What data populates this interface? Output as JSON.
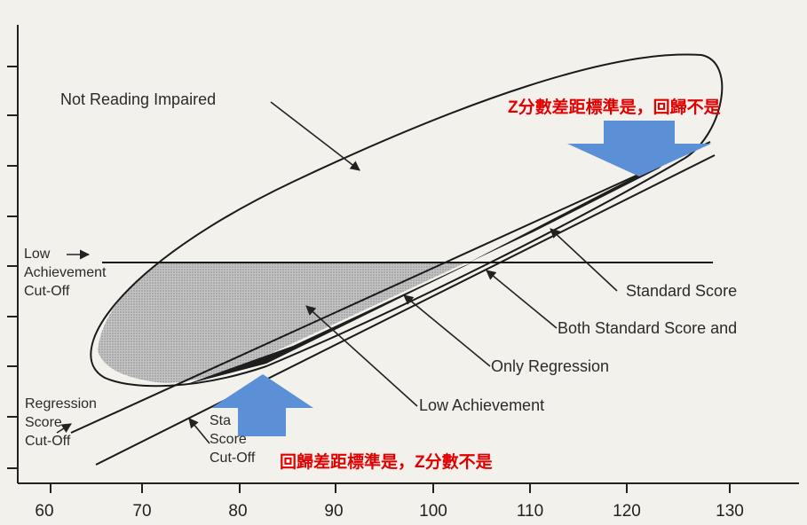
{
  "labels": {
    "not_reading_impaired": "Not Reading Impaired",
    "low_achievement_cutoff": [
      "Low",
      "Achievement",
      "Cut-Off"
    ],
    "regression_cutoff": [
      "Regression",
      "Score",
      "Cut-Off"
    ],
    "standard_cutoff": [
      "Sta",
      "Score",
      "Cut-Off"
    ],
    "standard_score": "Standard Score",
    "both": "Both Standard Score and",
    "only_regression": "Only Regression",
    "low_achievement": "Low Achievement"
  },
  "annotations": {
    "top_red": "Z分數差距標準是，回歸不是",
    "bottom_red": "回歸差距標準是，Z分數不是"
  },
  "x_axis": {
    "ticks": [
      "60",
      "70",
      "80",
      "90",
      "100",
      "110",
      "120",
      "130"
    ]
  },
  "colors": {
    "arrow_blue": "#5b8fd6",
    "red_text": "#e00000",
    "shade": "#aaaaaa",
    "dark_region": "#1e1e1e"
  }
}
